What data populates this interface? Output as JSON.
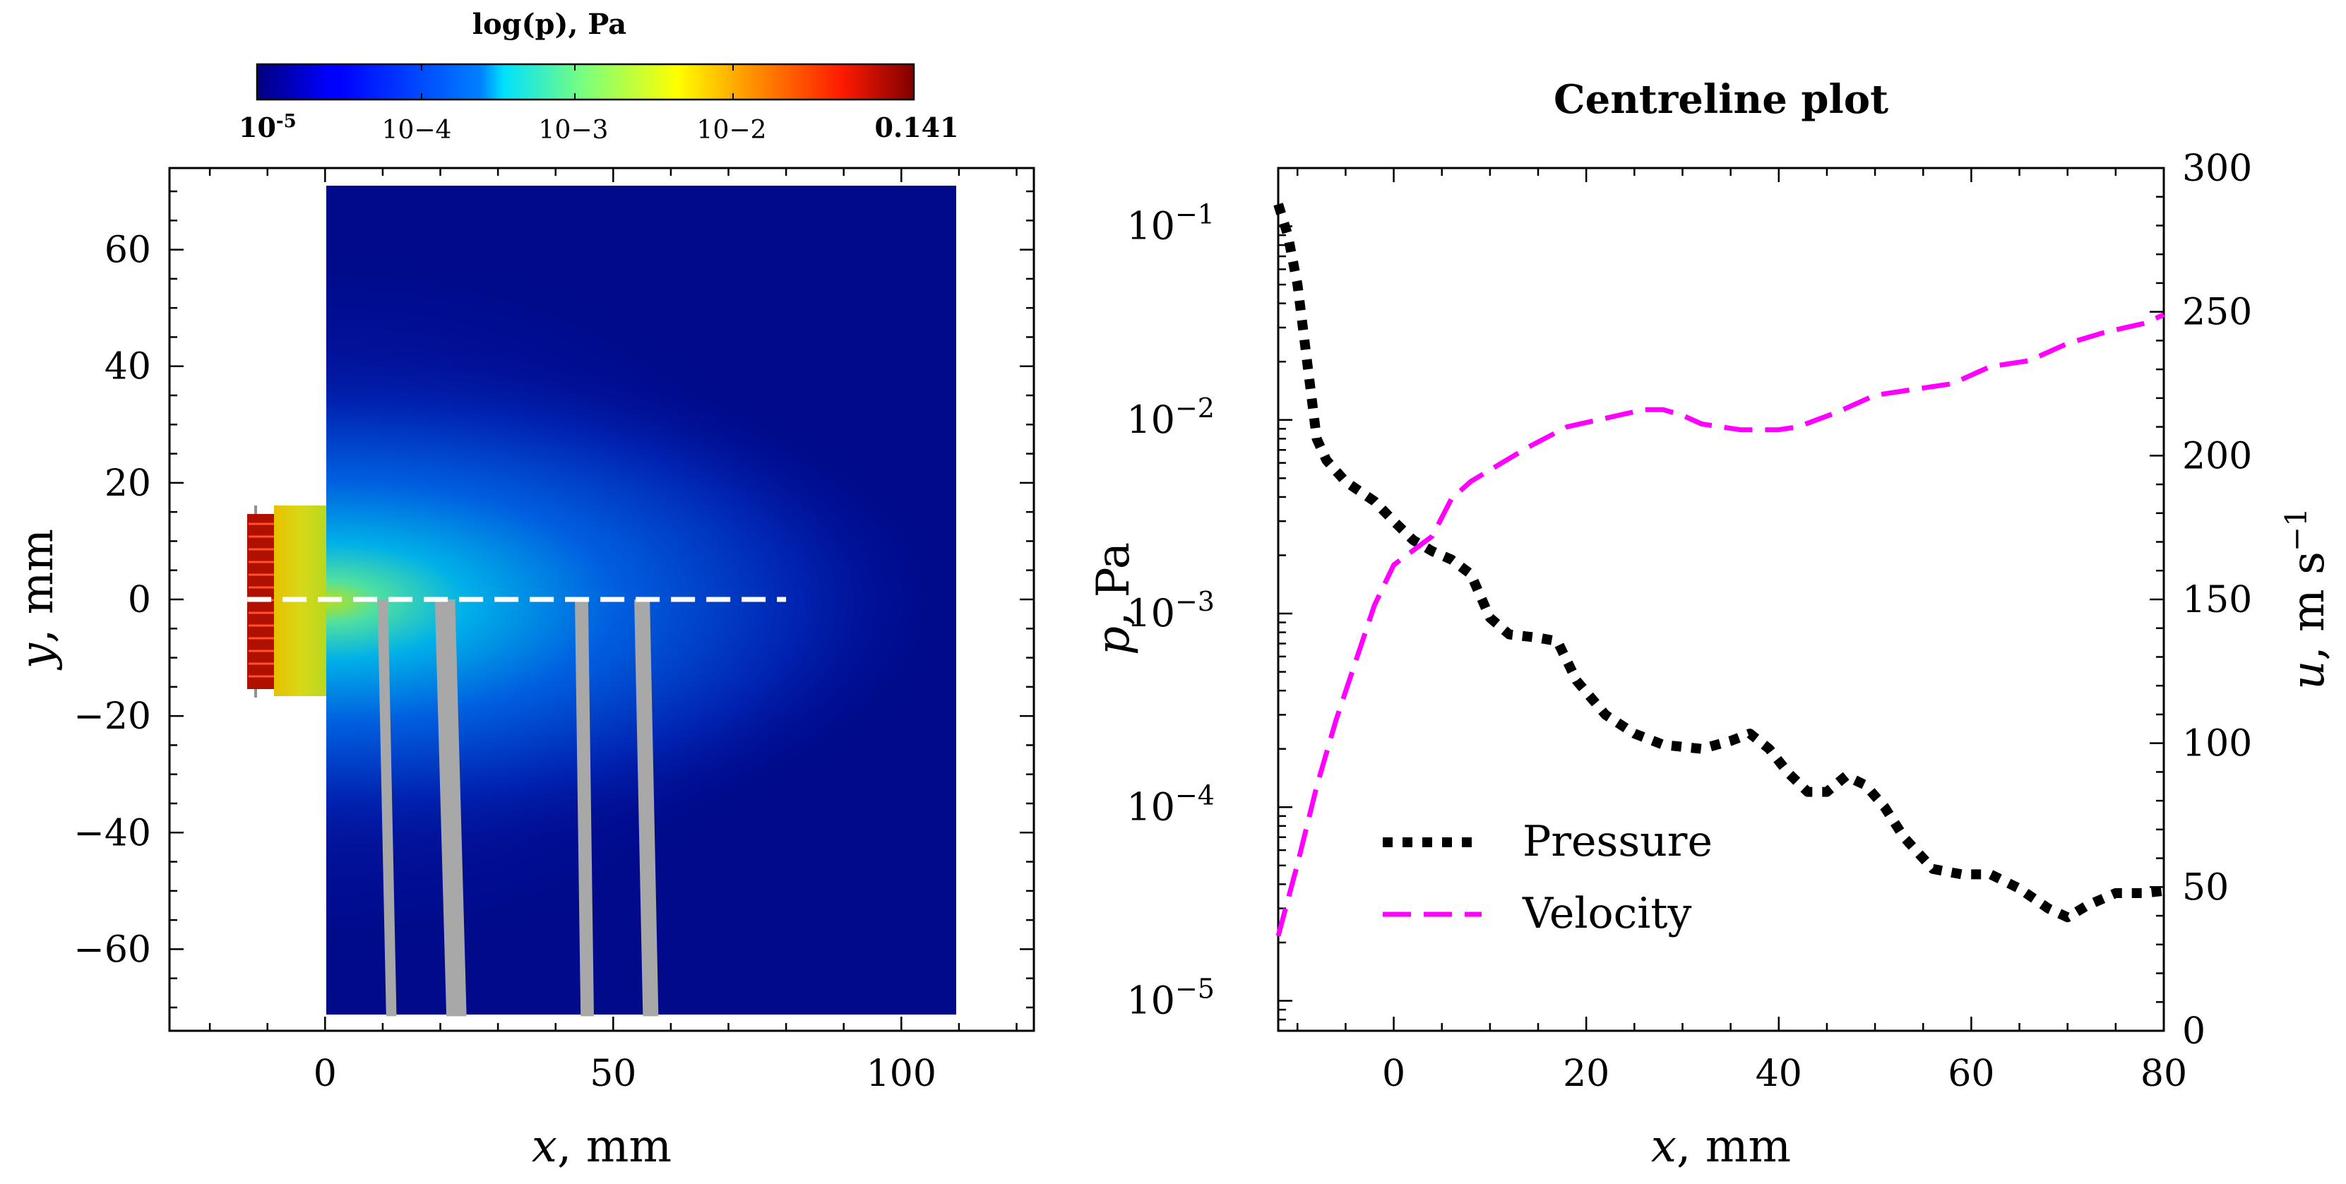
{
  "colorbar": {
    "title": "log(p), Pa",
    "min_label": "10-5",
    "max_label": "0.141",
    "tick_labels": [
      "10−4",
      "10−3",
      "10−2"
    ],
    "colormap": "jet"
  },
  "chart_data": [
    {
      "type": "heatmap",
      "xlabel": "x, mm",
      "ylabel": "y, mm",
      "xlim": [
        -27,
        123
      ],
      "ylim": [
        -74,
        74
      ],
      "xticks": [
        0,
        50,
        100
      ],
      "yticks": [
        -60,
        -40,
        -20,
        0,
        20,
        40,
        60
      ],
      "domain": {
        "x": [
          0,
          109
        ],
        "y": [
          -71.5,
          72
        ]
      },
      "color_scale": {
        "type": "log",
        "min": 1e-05,
        "max": 0.141,
        "colormap": "jet"
      },
      "centreline": {
        "x": [
          0,
          80
        ],
        "y": 0,
        "style": "dashed",
        "color": "#ffffff"
      },
      "wires": [
        {
          "x_top": 10,
          "x_bottom": 11.5,
          "width": 1.8
        },
        {
          "x_top": 20.8,
          "x_bottom": 22.8,
          "width": 3.5
        },
        {
          "x_top": 44.5,
          "x_bottom": 45.5,
          "width": 2.3
        },
        {
          "x_top": 55,
          "x_bottom": 56.5,
          "width": 2.7
        }
      ],
      "source": {
        "x": [
          -13.5,
          -6
        ],
        "y": [
          -15,
          15
        ]
      }
    },
    {
      "type": "line",
      "title": "Centreline plot",
      "xlabel": "x, mm",
      "ylabel": "p, Pa",
      "y2label": "u, m s−1",
      "xlim": [
        -12,
        80
      ],
      "xticks": [
        0,
        20,
        40,
        60,
        80
      ],
      "ylim": [
        7e-06,
        0.2
      ],
      "yscale": "log",
      "yticks": [
        1e-05,
        0.0001,
        0.001,
        0.01,
        0.1
      ],
      "ytick_labels": [
        "10−5",
        "10−4",
        "10−3",
        "10−2",
        "10−1"
      ],
      "y2lim": [
        0,
        300
      ],
      "y2ticks": [
        0,
        50,
        100,
        150,
        200,
        250,
        300
      ],
      "legend_position": "lower-left",
      "series": [
        {
          "name": "Pressure",
          "axis": "left",
          "color": "#000000",
          "style": "dotted",
          "x": [
            -12,
            -11,
            -10,
            -9,
            -8,
            -7,
            -5,
            -2,
            0,
            2,
            4,
            6,
            8,
            10,
            12,
            15,
            17,
            19,
            22,
            25,
            28,
            32,
            35,
            37,
            39,
            41,
            43,
            45,
            47,
            49,
            51,
            53,
            56,
            59,
            62,
            65,
            68,
            70,
            72,
            75,
            78,
            80
          ],
          "y": [
            0.13,
            0.09,
            0.05,
            0.02,
            0.008,
            0.0062,
            0.0048,
            0.0038,
            0.003,
            0.0024,
            0.0021,
            0.0019,
            0.0016,
            0.00095,
            0.00078,
            0.00075,
            0.00072,
            0.00045,
            0.0003,
            0.00024,
            0.00021,
            0.0002,
            0.00022,
            0.00024,
            0.0002,
            0.00015,
            0.00012,
            0.00012,
            0.000145,
            0.00013,
            0.0001,
            7e-05,
            4.8e-05,
            4.5e-05,
            4.5e-05,
            3.8e-05,
            3e-05,
            2.7e-05,
            3.1e-05,
            3.6e-05,
            3.6e-05,
            3.7e-05
          ]
        },
        {
          "name": "Velocity",
          "axis": "right",
          "color": "#ff00ff",
          "style": "dashed",
          "x": [
            -12,
            -10,
            -8,
            -6,
            -4,
            -2,
            0,
            2,
            4,
            6,
            8,
            10,
            14,
            18,
            22,
            26,
            28,
            30,
            32,
            36,
            40,
            42,
            46,
            50,
            54,
            58,
            62,
            66,
            70,
            74,
            78,
            80
          ],
          "y": [
            33,
            58,
            85,
            108,
            128,
            148,
            162,
            167,
            172,
            185,
            191,
            195,
            203,
            210,
            213,
            216,
            216,
            214,
            211,
            209,
            209,
            210,
            215,
            221,
            223,
            225,
            231,
            233,
            239,
            243,
            246,
            249
          ]
        }
      ]
    }
  ]
}
